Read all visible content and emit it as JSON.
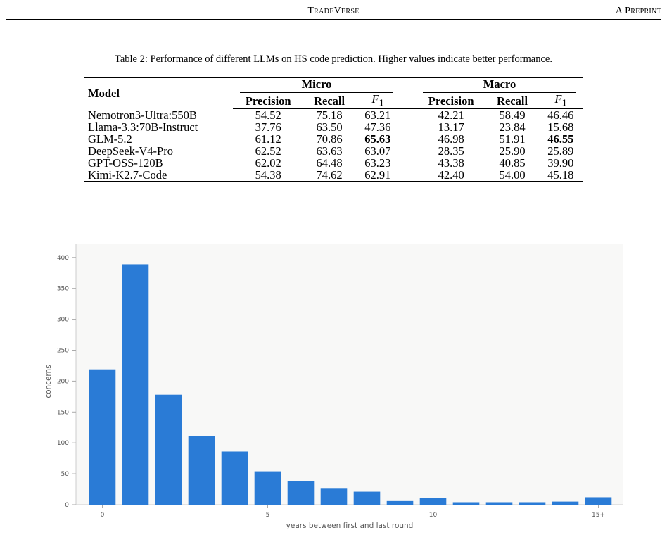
{
  "header": {
    "title": "TradeVerse",
    "right": "A Preprint"
  },
  "caption": "Table 2: Performance of different LLMs on HS code prediction. Higher values indicate better performance.",
  "table": {
    "model_header": "Model",
    "group_micro": "Micro",
    "group_macro": "Macro",
    "col_precision": "Precision",
    "col_recall": "Recall",
    "col_f1_main": "F",
    "col_f1_sub": "1",
    "rows": [
      {
        "model": "Nemotron3-Ultra:550B",
        "values": [
          "54.52",
          "75.18",
          "63.21",
          "42.21",
          "58.49",
          "46.46"
        ]
      },
      {
        "model": "Llama-3.3:70B-Instruct",
        "values": [
          "37.76",
          "63.50",
          "47.36",
          "13.17",
          "23.84",
          "15.68"
        ]
      },
      {
        "model": "GLM-5.2",
        "values": [
          "61.12",
          "70.86",
          "65.63",
          "46.98",
          "51.91",
          "46.55"
        ]
      },
      {
        "model": "DeepSeek-V4-Pro",
        "values": [
          "62.52",
          "63.63",
          "63.07",
          "28.35",
          "25.90",
          "25.89"
        ]
      },
      {
        "model": "GPT-OSS-120B",
        "values": [
          "62.02",
          "64.48",
          "63.23",
          "43.38",
          "40.85",
          "39.90"
        ]
      },
      {
        "model": "Kimi-K2.7-Code",
        "values": [
          "54.38",
          "74.62",
          "62.91",
          "42.40",
          "54.00",
          "45.18"
        ]
      }
    ]
  },
  "chart_data": {
    "type": "bar",
    "x": [
      0,
      1,
      2,
      3,
      4,
      5,
      6,
      7,
      8,
      9,
      10,
      11,
      12,
      13,
      14,
      15
    ],
    "values": [
      219,
      389,
      178,
      111,
      86,
      54,
      38,
      27,
      21,
      7,
      11,
      4,
      4,
      4,
      5,
      12
    ],
    "xticks": [
      {
        "value": 0,
        "label": "0"
      },
      {
        "value": 5,
        "label": "5"
      },
      {
        "value": 10,
        "label": "10"
      },
      {
        "value": 15,
        "label": "15+"
      }
    ],
    "yticks": [
      0,
      50,
      100,
      150,
      200,
      250,
      300,
      350,
      400
    ],
    "xlabel": "years between first and last round",
    "ylabel": "concerns",
    "ylim": [
      0,
      410
    ],
    "grid": false,
    "colors": {
      "bar": "#2a7bd6",
      "background": "#f8f8f7",
      "axis": "#cccccc"
    }
  }
}
